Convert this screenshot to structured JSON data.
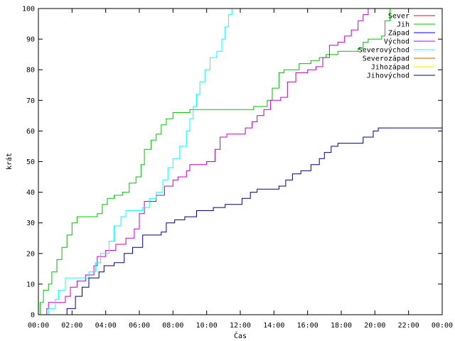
{
  "chart_data": {
    "type": "line",
    "title": "",
    "xlabel": "Čas",
    "ylabel": "krát",
    "xlim": [
      0,
      24
    ],
    "ylim": [
      0,
      100
    ],
    "x_tick_values": [
      0,
      2,
      4,
      6,
      8,
      10,
      12,
      14,
      16,
      18,
      20,
      22,
      24
    ],
    "x_tick_labels": [
      "00:00",
      "02:00",
      "04:00",
      "06:00",
      "08:00",
      "10:00",
      "12:00",
      "14:00",
      "16:00",
      "18:00",
      "20:00",
      "22:00",
      "00:00"
    ],
    "y_tick_values": [
      0,
      10,
      20,
      30,
      40,
      50,
      60,
      70,
      80,
      90,
      100
    ],
    "y_tick_labels": [
      "0",
      "10",
      "20",
      "30",
      "40",
      "50",
      "60",
      "70",
      "80",
      "90",
      "100"
    ],
    "grid": false,
    "legend_position": "top-right",
    "series": [
      {
        "name": "Sever",
        "color": "#ff0000",
        "points": []
      },
      {
        "name": "Jih",
        "color": "#00c000",
        "points": [
          [
            0,
            0
          ],
          [
            0.1,
            4
          ],
          [
            0.3,
            8
          ],
          [
            0.6,
            10
          ],
          [
            0.8,
            14
          ],
          [
            1.1,
            18
          ],
          [
            1.4,
            22
          ],
          [
            1.7,
            26
          ],
          [
            2.0,
            30
          ],
          [
            2.3,
            32
          ],
          [
            3.5,
            33
          ],
          [
            3.8,
            36
          ],
          [
            4.1,
            38
          ],
          [
            4.5,
            39
          ],
          [
            5.0,
            40
          ],
          [
            5.4,
            43
          ],
          [
            5.8,
            45
          ],
          [
            6.1,
            49
          ],
          [
            6.3,
            54
          ],
          [
            6.7,
            57
          ],
          [
            7.0,
            59
          ],
          [
            7.3,
            62
          ],
          [
            7.6,
            64
          ],
          [
            8.0,
            66
          ],
          [
            8.5,
            66
          ],
          [
            9.0,
            67
          ],
          [
            12.8,
            68
          ],
          [
            13.6,
            70
          ],
          [
            13.9,
            74
          ],
          [
            14.3,
            79
          ],
          [
            14.6,
            80
          ],
          [
            15.5,
            82
          ],
          [
            16.2,
            83
          ],
          [
            16.7,
            84
          ],
          [
            17.1,
            85
          ],
          [
            17.8,
            86
          ],
          [
            19.0,
            87
          ],
          [
            19.3,
            89
          ],
          [
            19.6,
            90
          ],
          [
            20.4,
            91
          ],
          [
            20.6,
            96
          ],
          [
            20.9,
            100
          ]
        ]
      },
      {
        "name": "Západ",
        "color": "#0000ff",
        "points": []
      },
      {
        "name": "Východ",
        "color": "#c000c0",
        "points": [
          [
            0.4,
            0
          ],
          [
            0.5,
            2
          ],
          [
            0.6,
            4
          ],
          [
            1.6,
            6
          ],
          [
            1.9,
            9
          ],
          [
            2.3,
            11
          ],
          [
            2.8,
            13
          ],
          [
            3.3,
            16
          ],
          [
            3.5,
            19
          ],
          [
            4.0,
            21
          ],
          [
            4.6,
            23
          ],
          [
            5.2,
            25
          ],
          [
            5.7,
            28
          ],
          [
            6.0,
            33
          ],
          [
            6.3,
            37
          ],
          [
            7.0,
            39
          ],
          [
            7.5,
            42
          ],
          [
            8.0,
            44
          ],
          [
            8.3,
            45
          ],
          [
            8.8,
            47
          ],
          [
            9.0,
            49
          ],
          [
            10.0,
            50
          ],
          [
            10.5,
            54
          ],
          [
            10.8,
            58
          ],
          [
            11.2,
            59
          ],
          [
            12.0,
            59
          ],
          [
            12.3,
            61
          ],
          [
            12.7,
            63
          ],
          [
            13.0,
            65
          ],
          [
            13.4,
            67
          ],
          [
            13.8,
            70
          ],
          [
            14.4,
            71
          ],
          [
            14.8,
            76
          ],
          [
            15.3,
            79
          ],
          [
            16.0,
            80
          ],
          [
            16.5,
            81
          ],
          [
            16.9,
            84
          ],
          [
            17.3,
            88
          ],
          [
            17.8,
            89
          ],
          [
            18.2,
            91
          ],
          [
            18.6,
            93
          ],
          [
            19.0,
            96
          ],
          [
            19.3,
            98
          ],
          [
            19.6,
            100
          ]
        ]
      },
      {
        "name": "Severovýchod",
        "color": "#00ffff",
        "points": [
          [
            0.5,
            0
          ],
          [
            0.6,
            2
          ],
          [
            1.0,
            5
          ],
          [
            1.2,
            8
          ],
          [
            1.6,
            12
          ],
          [
            2.4,
            12
          ],
          [
            3.0,
            14
          ],
          [
            3.4,
            17
          ],
          [
            3.7,
            20
          ],
          [
            4.2,
            24
          ],
          [
            4.5,
            29
          ],
          [
            4.9,
            32
          ],
          [
            5.2,
            34
          ],
          [
            6.2,
            35
          ],
          [
            6.6,
            38
          ],
          [
            7.0,
            40
          ],
          [
            7.4,
            44
          ],
          [
            7.7,
            48
          ],
          [
            8.0,
            51
          ],
          [
            8.4,
            55
          ],
          [
            8.8,
            60
          ],
          [
            9.0,
            64
          ],
          [
            9.2,
            68
          ],
          [
            9.4,
            72
          ],
          [
            9.6,
            76
          ],
          [
            9.9,
            80
          ],
          [
            10.2,
            84
          ],
          [
            10.6,
            86
          ],
          [
            10.9,
            90
          ],
          [
            11.1,
            94
          ],
          [
            11.3,
            98
          ],
          [
            11.5,
            100
          ]
        ]
      },
      {
        "name": "Severozápad",
        "color": "#c06000",
        "points": []
      },
      {
        "name": "Jihozápad",
        "color": "#ffe000",
        "points": []
      },
      {
        "name": "Jihovýchod",
        "color": "#000080",
        "points": [
          [
            1.6,
            0
          ],
          [
            1.7,
            2
          ],
          [
            2.2,
            6
          ],
          [
            2.6,
            9
          ],
          [
            3.0,
            12
          ],
          [
            3.6,
            14
          ],
          [
            3.9,
            16
          ],
          [
            4.5,
            17
          ],
          [
            5.1,
            20
          ],
          [
            5.6,
            22
          ],
          [
            6.2,
            26
          ],
          [
            7.3,
            27
          ],
          [
            7.6,
            30
          ],
          [
            8.1,
            31
          ],
          [
            8.7,
            32
          ],
          [
            9.4,
            34
          ],
          [
            10.4,
            35
          ],
          [
            11.1,
            36
          ],
          [
            12.1,
            38
          ],
          [
            12.6,
            40
          ],
          [
            13.0,
            41
          ],
          [
            14.3,
            42
          ],
          [
            14.7,
            44
          ],
          [
            15.1,
            46
          ],
          [
            15.6,
            47
          ],
          [
            16.2,
            49
          ],
          [
            16.7,
            51
          ],
          [
            17.0,
            53
          ],
          [
            17.4,
            55
          ],
          [
            17.8,
            56
          ],
          [
            19.3,
            58
          ],
          [
            19.9,
            60
          ],
          [
            20.2,
            61
          ],
          [
            24,
            61
          ]
        ]
      }
    ]
  }
}
